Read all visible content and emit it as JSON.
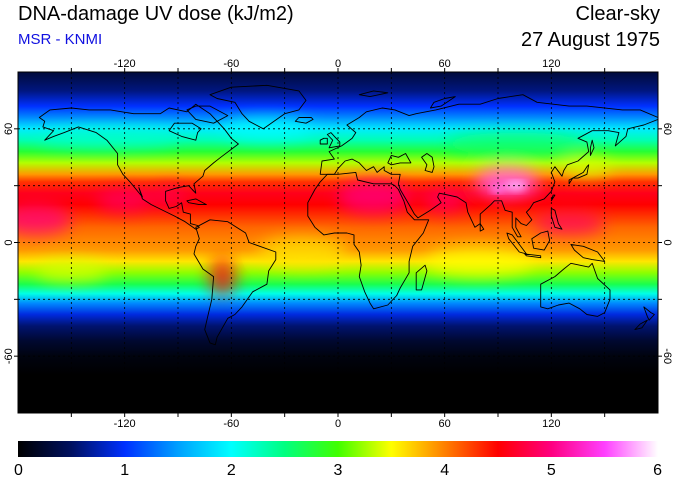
{
  "header": {
    "title": "DNA-damage UV dose (kJ/m2)",
    "credit": "MSR - KNMI",
    "sky_condition": "Clear-sky",
    "date": "27 August 1975"
  },
  "map": {
    "projection": "equirectangular",
    "lon_range": [
      -180,
      180
    ],
    "lat_range": [
      -90,
      90
    ],
    "grid": true,
    "longitude_ticks": [
      -120,
      -60,
      0,
      60,
      120
    ],
    "latitude_ticks": [
      60,
      0,
      -60
    ],
    "longitude_tick_labels": [
      "-120",
      "-60",
      "0",
      "60",
      "120"
    ],
    "latitude_tick_labels": [
      "60",
      "0",
      "-60"
    ],
    "field_description": "daily UV dose, highest in tropics and northern subtropics, near zero at high southern latitudes"
  },
  "colorbar": {
    "min": 0,
    "max": 6,
    "tick_labels": [
      "0",
      "1",
      "2",
      "3",
      "4",
      "5",
      "6"
    ],
    "stops": [
      {
        "value": 0.0,
        "color": "#000000"
      },
      {
        "value": 0.5,
        "color": "#001060"
      },
      {
        "value": 1.0,
        "color": "#0030ff"
      },
      {
        "value": 1.5,
        "color": "#00a0ff"
      },
      {
        "value": 2.0,
        "color": "#00ffff"
      },
      {
        "value": 2.5,
        "color": "#00ff80"
      },
      {
        "value": 3.0,
        "color": "#40ff00"
      },
      {
        "value": 3.5,
        "color": "#ffff00"
      },
      {
        "value": 4.0,
        "color": "#ff8000"
      },
      {
        "value": 4.5,
        "color": "#ff0000"
      },
      {
        "value": 5.0,
        "color": "#ff0080"
      },
      {
        "value": 5.5,
        "color": "#ff40ff"
      },
      {
        "value": 6.0,
        "color": "#ffffff"
      }
    ]
  }
}
